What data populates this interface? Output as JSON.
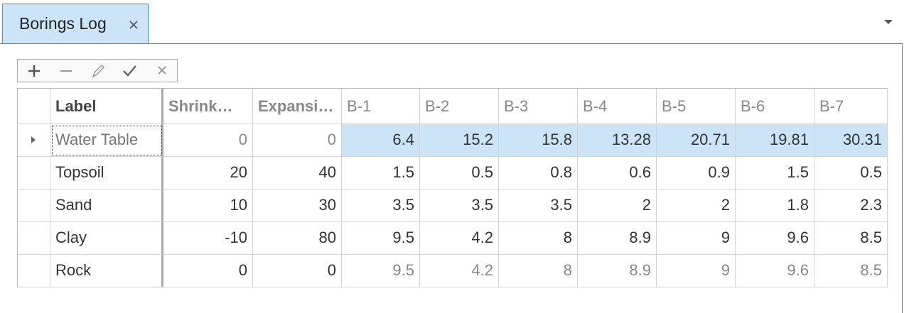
{
  "tab": {
    "title": "Borings Log"
  },
  "table": {
    "columns": [
      "Label",
      "Shrink…",
      "Expansi…",
      "B-1",
      "B-2",
      "B-3",
      "B-4",
      "B-5",
      "B-6",
      "B-7"
    ],
    "rows": [
      {
        "label": "Water Table",
        "cells": [
          0,
          0,
          6.4,
          15.2,
          15.8,
          13.28,
          20.71,
          19.81,
          30.31
        ]
      },
      {
        "label": "Topsoil",
        "cells": [
          20,
          40,
          1.5,
          0.5,
          0.8,
          0.6,
          0.9,
          1.5,
          0.5
        ]
      },
      {
        "label": "Sand",
        "cells": [
          10,
          30,
          3.5,
          3.5,
          3.5,
          2,
          2,
          1.8,
          2.3
        ]
      },
      {
        "label": "Clay",
        "cells": [
          -10,
          80,
          9.5,
          4.2,
          8,
          8.9,
          9,
          9.6,
          8.5
        ]
      },
      {
        "label": "Rock",
        "cells": [
          0,
          0,
          9.5,
          4.2,
          8,
          8.9,
          9,
          9.6,
          8.5
        ]
      }
    ]
  }
}
